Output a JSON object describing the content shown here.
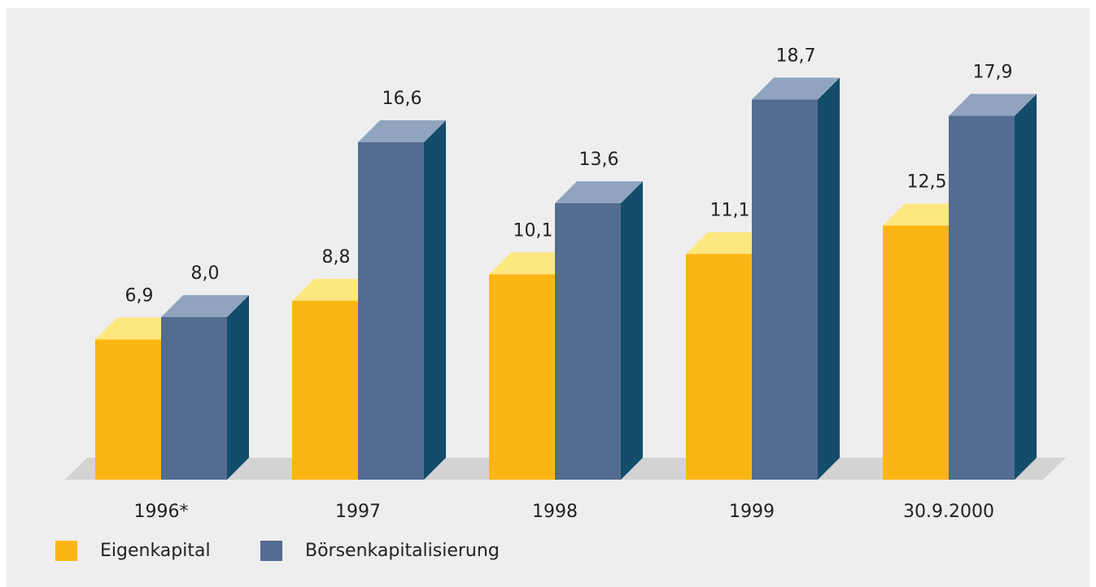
{
  "chart_data": {
    "type": "bar3d",
    "categories": [
      "1996*",
      "1997",
      "1998",
      "1999",
      "30.9.2000"
    ],
    "series": [
      {
        "name": "Eigenkapital",
        "color": "#fbb614",
        "values": [
          6.9,
          8.8,
          10.1,
          11.1,
          12.5
        ],
        "value_labels": [
          "6,9",
          "8,8",
          "10,1",
          "11,1",
          "12,5"
        ]
      },
      {
        "name": "Börsenkapitalisierung",
        "color": "#536c90",
        "values": [
          8.0,
          16.6,
          13.6,
          18.7,
          17.9
        ],
        "value_labels": [
          "8,0",
          "16,6",
          "13,6",
          "18,7",
          "17,9"
        ]
      }
    ],
    "ylim": [
      0,
      20
    ]
  }
}
